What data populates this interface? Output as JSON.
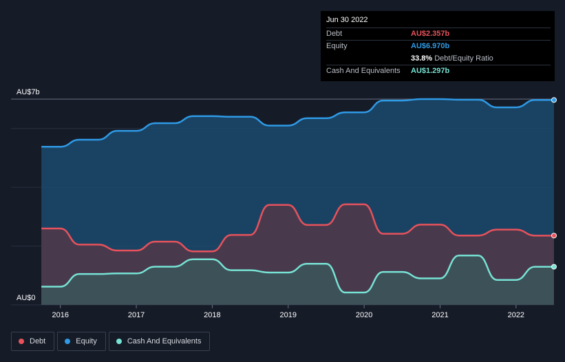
{
  "tooltip": {
    "date": "Jun 30 2022",
    "rows": [
      {
        "label": "Debt",
        "value": "AU$2.357b",
        "color": "#e8525c"
      },
      {
        "label": "Equity",
        "value": "AU$6.970b",
        "color": "#2f9ae6"
      },
      {
        "label": "",
        "value": "33.8%",
        "suffix": "Debt/Equity Ratio",
        "color": "#ffffff"
      },
      {
        "label": "Cash And Equivalents",
        "value": "AU$1.297b",
        "color": "#77e3d4"
      }
    ]
  },
  "legend": [
    {
      "label": "Debt",
      "color": "#e8525c"
    },
    {
      "label": "Equity",
      "color": "#2f9ae6"
    },
    {
      "label": "Cash And Equivalents",
      "color": "#77e3d4"
    }
  ],
  "chart_data": {
    "type": "area",
    "y_tick_labels": [
      {
        "value": 7,
        "label": "AU$7b"
      },
      {
        "value": 0,
        "label": "AU$0"
      }
    ],
    "ylim": [
      0,
      7
    ],
    "xlim": [
      2015.35,
      2022.5
    ],
    "x_tick_labels": [
      "2016",
      "2017",
      "2018",
      "2019",
      "2020",
      "2021",
      "2022"
    ],
    "x_ticks": [
      2016,
      2017,
      2018,
      2019,
      2020,
      2021,
      2022
    ],
    "grid": true,
    "legend_position": "bottom-left",
    "series": [
      {
        "name": "Equity",
        "color": "#2f9ae6",
        "x": [
          2015.75,
          2016.0,
          2016.25,
          2016.5,
          2016.75,
          2017.0,
          2017.25,
          2017.5,
          2017.75,
          2018.0,
          2018.25,
          2018.5,
          2018.75,
          2019.0,
          2019.25,
          2019.5,
          2019.75,
          2020.0,
          2020.25,
          2020.5,
          2020.75,
          2021.0,
          2021.25,
          2021.5,
          2021.75,
          2022.0,
          2022.25,
          2022.5
        ],
        "values": [
          5.38,
          5.38,
          5.62,
          5.62,
          5.92,
          5.92,
          6.18,
          6.18,
          6.42,
          6.42,
          6.4,
          6.4,
          6.1,
          6.1,
          6.35,
          6.35,
          6.55,
          6.55,
          6.95,
          6.95,
          7.0,
          7.0,
          6.98,
          6.98,
          6.72,
          6.72,
          6.97,
          6.97
        ]
      },
      {
        "name": "Debt",
        "color": "#e8525c",
        "x": [
          2015.75,
          2016.0,
          2016.25,
          2016.5,
          2016.75,
          2017.0,
          2017.25,
          2017.5,
          2017.75,
          2018.0,
          2018.25,
          2018.5,
          2018.75,
          2019.0,
          2019.25,
          2019.5,
          2019.75,
          2020.0,
          2020.25,
          2020.5,
          2020.75,
          2021.0,
          2021.25,
          2021.5,
          2021.75,
          2022.0,
          2022.25,
          2022.5
        ],
        "values": [
          2.6,
          2.6,
          2.05,
          2.05,
          1.85,
          1.85,
          2.15,
          2.15,
          1.82,
          1.82,
          2.38,
          2.38,
          3.4,
          3.4,
          2.72,
          2.72,
          3.42,
          3.42,
          2.42,
          2.42,
          2.73,
          2.73,
          2.36,
          2.36,
          2.56,
          2.56,
          2.357,
          2.357
        ]
      },
      {
        "name": "Cash And Equivalents",
        "color": "#77e3d4",
        "x": [
          2015.75,
          2016.0,
          2016.25,
          2016.5,
          2016.75,
          2017.0,
          2017.25,
          2017.5,
          2017.75,
          2018.0,
          2018.25,
          2018.5,
          2018.75,
          2019.0,
          2019.25,
          2019.5,
          2019.75,
          2020.0,
          2020.25,
          2020.5,
          2020.75,
          2021.0,
          2021.25,
          2021.5,
          2021.75,
          2022.0,
          2022.25,
          2022.5
        ],
        "values": [
          0.62,
          0.62,
          1.05,
          1.05,
          1.07,
          1.07,
          1.3,
          1.3,
          1.55,
          1.55,
          1.18,
          1.18,
          1.1,
          1.1,
          1.4,
          1.4,
          0.42,
          0.42,
          1.12,
          1.12,
          0.9,
          0.9,
          1.68,
          1.68,
          0.85,
          0.85,
          1.297,
          1.297
        ]
      }
    ]
  }
}
